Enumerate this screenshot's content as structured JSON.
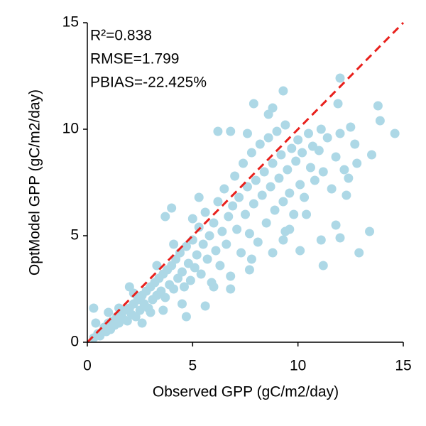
{
  "chart_data": {
    "type": "scatter",
    "xlabel": "Observed GPP (gC/m2/day)",
    "ylabel": "OptModel GPP (gC/m2/day)",
    "annotations": [
      "R²=0.838",
      "RMSE=1.799",
      "PBIAS=-22.425%"
    ],
    "xlim": [
      0,
      15
    ],
    "ylim": [
      0,
      15
    ],
    "xticks": [
      0,
      5,
      10,
      15
    ],
    "yticks": [
      0,
      5,
      10,
      15
    ],
    "color": "#add8e6",
    "line_color": "#e8201c",
    "x": [
      0.3,
      0.5,
      0.6,
      0.8,
      0.9,
      1.0,
      1.1,
      1.2,
      1.3,
      1.4,
      1.5,
      1.6,
      1.7,
      1.8,
      1.9,
      2.0,
      2.1,
      2.2,
      2.3,
      2.4,
      2.5,
      2.6,
      2.7,
      2.8,
      2.9,
      3.0,
      3.1,
      3.2,
      3.3,
      3.4,
      3.5,
      3.6,
      3.7,
      3.8,
      3.9,
      4.0,
      4.1,
      4.2,
      4.3,
      4.4,
      4.5,
      4.6,
      4.7,
      4.8,
      4.9,
      5.0,
      5.1,
      5.2,
      5.3,
      5.4,
      5.5,
      5.6,
      5.7,
      5.8,
      5.9,
      6.0,
      6.1,
      6.2,
      6.3,
      6.4,
      6.5,
      6.6,
      6.7,
      6.8,
      6.9,
      7.0,
      7.1,
      7.2,
      7.3,
      7.4,
      7.5,
      7.6,
      7.7,
      7.8,
      7.9,
      8.0,
      8.1,
      8.2,
      8.3,
      8.4,
      8.5,
      8.6,
      8.7,
      8.8,
      8.9,
      9.0,
      9.1,
      9.2,
      9.3,
      9.4,
      9.5,
      9.6,
      9.7,
      9.8,
      9.9,
      10.0,
      10.1,
      10.2,
      10.3,
      10.5,
      10.6,
      10.8,
      11.0,
      11.2,
      11.4,
      11.6,
      11.8,
      12.0,
      12.2,
      12.4,
      0.4,
      1.0,
      1.5,
      2.2,
      2.6,
      3.0,
      3.3,
      4.1,
      4.5,
      5.0,
      3.6,
      0.3,
      7.9,
      9.3,
      12.0,
      13.8,
      14.6,
      13.9,
      13.4,
      12.9,
      11.2,
      10.1,
      8.8,
      7.7,
      7.8,
      6.0,
      6.8,
      4.7,
      5.6,
      2.0,
      4.0,
      3.7,
      5.3,
      6.2,
      6.8,
      7.6,
      8.6,
      8.8,
      12.8,
      12.7,
      13.5,
      12.5,
      11.9,
      11.1,
      10.7,
      12.3,
      11.8,
      12.0,
      11.1,
      10.4,
      9.6,
      9.3,
      9.4
    ],
    "y": [
      0.2,
      0.4,
      0.3,
      0.7,
      0.5,
      0.9,
      0.6,
      1.0,
      0.8,
      1.2,
      0.9,
      1.3,
      1.1,
      1.5,
      1.0,
      1.6,
      1.3,
      1.8,
      1.2,
      2.0,
      1.5,
      2.2,
      1.8,
      2.4,
      1.6,
      2.6,
      2.0,
      2.8,
      2.2,
      3.0,
      2.4,
      3.2,
      2.1,
      3.4,
      2.7,
      3.6,
      2.5,
      3.9,
      3.0,
      4.2,
      3.3,
      2.6,
      4.5,
      3.7,
      2.9,
      4.8,
      3.5,
      4.1,
      5.4,
      3.2,
      4.6,
      6.1,
      3.9,
      5.0,
      2.8,
      5.6,
      4.3,
      6.6,
      3.6,
      5.2,
      7.2,
      4.6,
      5.9,
      3.1,
      6.4,
      7.8,
      5.3,
      6.8,
      4.2,
      8.4,
      6.0,
      7.3,
      5.1,
      8.9,
      6.5,
      7.6,
      4.7,
      9.3,
      6.9,
      8.0,
      5.6,
      9.6,
      7.3,
      8.4,
      6.2,
      9.9,
      7.7,
      8.8,
      6.6,
      10.2,
      8.1,
      7.0,
      9.1,
      6.0,
      8.5,
      9.5,
      7.4,
      8.9,
      6.8,
      9.8,
      8.2,
      7.6,
      9.0,
      8.0,
      9.6,
      7.2,
      8.7,
      9.8,
      8.1,
      7.7,
      0.9,
      1.4,
      1.6,
      2.3,
      0.9,
      1.4,
      3.6,
      4.6,
      1.8,
      5.8,
      1.5,
      1.6,
      11.2,
      11.8,
      12.4,
      11.1,
      9.8,
      10.4,
      5.2,
      4.2,
      3.6,
      4.3,
      4.2,
      3.4,
      3.9,
      2.6,
      2.5,
      1.2,
      1.7,
      2.6,
      6.3,
      5.9,
      6.8,
      9.9,
      9.9,
      9.8,
      10.7,
      11.0,
      8.4,
      9.3,
      8.8,
      10.1,
      11.2,
      10.0,
      9.2,
      6.9,
      5.5,
      4.9,
      4.8,
      6.0,
      5.3,
      4.8,
      5.2
    ]
  }
}
